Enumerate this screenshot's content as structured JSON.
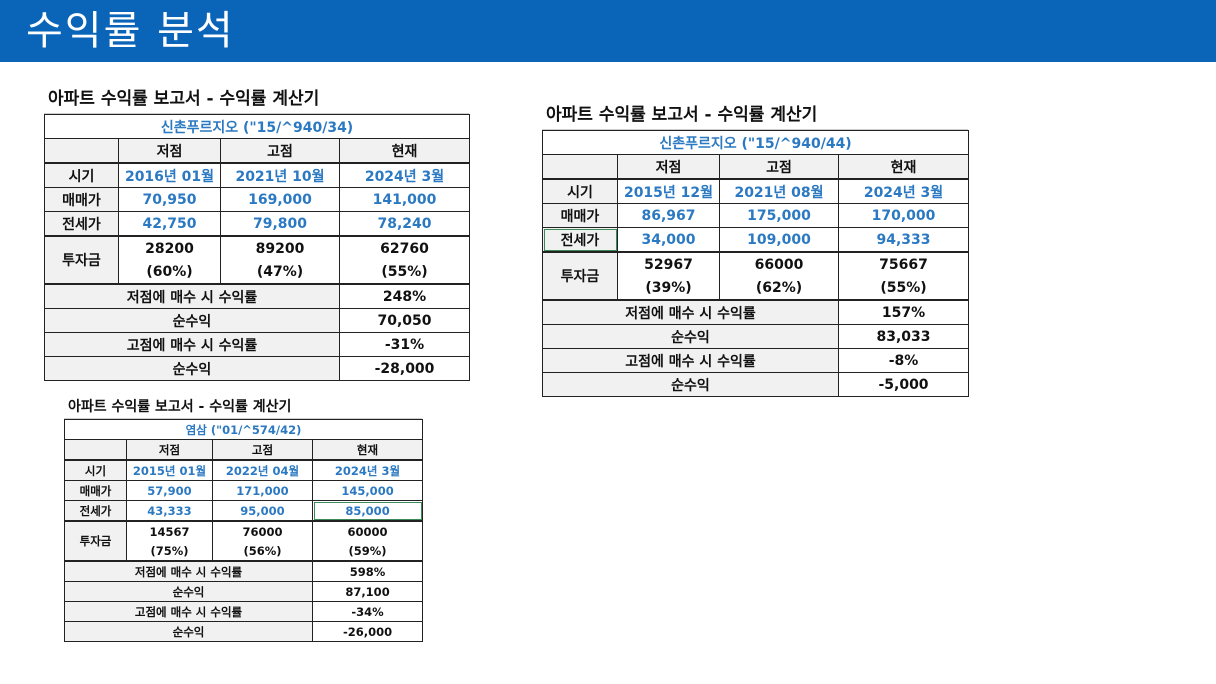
{
  "page": {
    "title": "수익률 분석"
  },
  "reports": [
    {
      "title": "아파트 수익률 보고서 - 수익률 계산기",
      "property": "신촌푸르지오 (\"15/^940/34)",
      "headers": [
        "저점",
        "고점",
        "현재"
      ],
      "labels": {
        "period": "시기",
        "sale": "매매가",
        "jeonse": "전세가",
        "invest": "투자금"
      },
      "period": [
        "2016년 01월",
        "2021년 10월",
        "2024년 3월"
      ],
      "sale": [
        "70,950",
        "169,000",
        "141,000"
      ],
      "jeonse": [
        "42,750",
        "79,800",
        "78,240"
      ],
      "invest": [
        "28200",
        "89200",
        "62760"
      ],
      "invest_pct": [
        "(60%)",
        "(47%)",
        "(55%)"
      ],
      "summary": [
        {
          "label": "저점에 매수 시 수익률",
          "value": "248%"
        },
        {
          "label": "순수익",
          "value": "70,050"
        },
        {
          "label": "고점에 매수 시 수익률",
          "value": "-31%"
        },
        {
          "label": "순수익",
          "value": "-28,000"
        }
      ]
    },
    {
      "title": "아파트 수익률 보고서 - 수익률 계산기",
      "property": "신촌푸르지오 (\"15/^940/44)",
      "headers": [
        "저점",
        "고점",
        "현재"
      ],
      "labels": {
        "period": "시기",
        "sale": "매매가",
        "jeonse": "전세가",
        "invest": "투자금"
      },
      "period": [
        "2015년 12월",
        "2021년 08월",
        "2024년 3월"
      ],
      "sale": [
        "86,967",
        "175,000",
        "170,000"
      ],
      "jeonse": [
        "34,000",
        "109,000",
        "94,333"
      ],
      "invest": [
        "52967",
        "66000",
        "75667"
      ],
      "invest_pct": [
        "(39%)",
        "(62%)",
        "(55%)"
      ],
      "summary": [
        {
          "label": "저점에 매수 시 수익률",
          "value": "157%"
        },
        {
          "label": "순수익",
          "value": "83,033"
        },
        {
          "label": "고점에 매수 시 수익률",
          "value": "-8%"
        },
        {
          "label": "순수익",
          "value": "-5,000"
        }
      ]
    },
    {
      "title": "아파트 수익률 보고서 - 수익률 계산기",
      "property": "염삼 (\"01/^574/42)",
      "headers": [
        "저점",
        "고점",
        "현재"
      ],
      "labels": {
        "period": "시기",
        "sale": "매매가",
        "jeonse": "전세가",
        "invest": "투자금"
      },
      "period": [
        "2015년 01월",
        "2022년 04월",
        "2024년 3월"
      ],
      "sale": [
        "57,900",
        "171,000",
        "145,000"
      ],
      "jeonse": [
        "43,333",
        "95,000",
        "85,000"
      ],
      "invest": [
        "14567",
        "76000",
        "60000"
      ],
      "invest_pct": [
        "(75%)",
        "(56%)",
        "(59%)"
      ],
      "summary": [
        {
          "label": "저점에 매수 시 수익률",
          "value": "598%"
        },
        {
          "label": "순수익",
          "value": "87,100"
        },
        {
          "label": "고점에 매수 시 수익률",
          "value": "-34%"
        },
        {
          "label": "순수익",
          "value": "-26,000"
        }
      ]
    }
  ]
}
